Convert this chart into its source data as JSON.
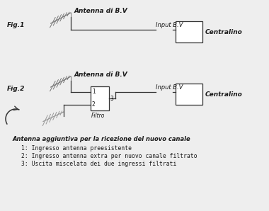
{
  "bg_color": "#eeeeee",
  "fig1_label": "Fig.1",
  "fig2_label": "Fig.2",
  "antenna_label": "Antenna di B.V",
  "input_label": "Input B.V",
  "centralino_label": "Centralino",
  "filtro_label": "Filtro",
  "antenna_aggiuntiva_label": "Antenna aggiuntiva per la ricezione del nuovo canale",
  "note1": "1: Ingresso antenna preesistente",
  "note2": "2: Ingresso antenna extra per nuovo canale filtrato",
  "note3": "3: Uscita miscelata dei due ingressi filtrati",
  "text_color": "#1a1a1a",
  "line_color": "#333333",
  "box_color": "#ffffff",
  "box_edge": "#333333"
}
